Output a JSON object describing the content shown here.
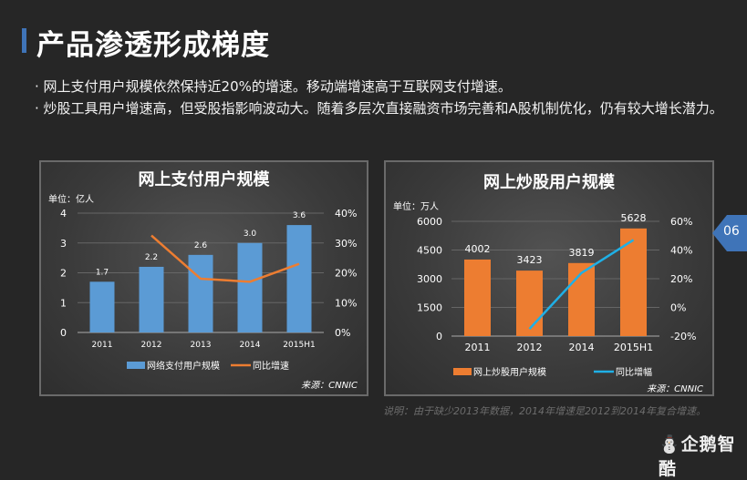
{
  "header": {
    "title": "产品渗透形成梯度"
  },
  "bullets": [
    "· 网上支付用户规模依然保持近20%的增速。移动端增速高于互联网支付增速。",
    "· 炒股工具用户增速高，但受股指影响波动大。随着多层次直接融资市场完善和A股机制优化，仍有较大增长潜力。"
  ],
  "note": "说明：由于缺少2013年数据，2014年增速是2012到2014年复合增速。",
  "page_number": "06",
  "logo_text": "企鹅智酷",
  "colors": {
    "accent": "#3f74b8",
    "bar_blue": "#5b9bd5",
    "line_orange": "#ed7d31",
    "bar_orange": "#ed7d31",
    "line_cyan": "#1fb0e6"
  },
  "chart_data": [
    {
      "type": "bar+line",
      "title": "网上支付用户规模",
      "unit_label": "单位：亿人",
      "source": "来源：CNNIC",
      "categories": [
        "2011",
        "2012",
        "2013",
        "2014",
        "2015H1"
      ],
      "bar_series": {
        "name": "网络支付用户规模",
        "values": [
          1.7,
          2.2,
          2.6,
          3.0,
          3.6
        ],
        "labels": [
          "1.7",
          "2.2",
          "2.6",
          "3.0",
          "3.6"
        ]
      },
      "line_series": {
        "name": "同比增速",
        "values": [
          null,
          32.5,
          18,
          17,
          23
        ]
      },
      "ylim": [
        0,
        4
      ],
      "yticks": [
        "0",
        "1",
        "2",
        "3",
        "4"
      ],
      "y2lim": [
        0,
        40
      ],
      "y2ticks": [
        "0%",
        "10%",
        "20%",
        "30%",
        "40%"
      ],
      "grid": true,
      "legend": "bottom"
    },
    {
      "type": "bar+line",
      "title": "网上炒股用户规模",
      "unit_label": "单位：万人",
      "source": "来源：CNNIC",
      "categories": [
        "2011",
        "2012",
        "2014",
        "2015H1"
      ],
      "bar_series": {
        "name": "网上炒股用户规模",
        "values": [
          4002,
          3423,
          3819,
          5628
        ],
        "labels": [
          "4002",
          "3423",
          "3819",
          "5628"
        ]
      },
      "line_series": {
        "name": "同比增幅",
        "values": [
          null,
          -15,
          24,
          47
        ]
      },
      "ylim": [
        0,
        6000
      ],
      "yticks": [
        "0",
        "1500",
        "3000",
        "4500",
        "6000"
      ],
      "y2lim": [
        -20,
        60
      ],
      "y2ticks": [
        "-20%",
        "0%",
        "20%",
        "40%",
        "60%"
      ],
      "grid": true,
      "legend": "bottom"
    }
  ]
}
